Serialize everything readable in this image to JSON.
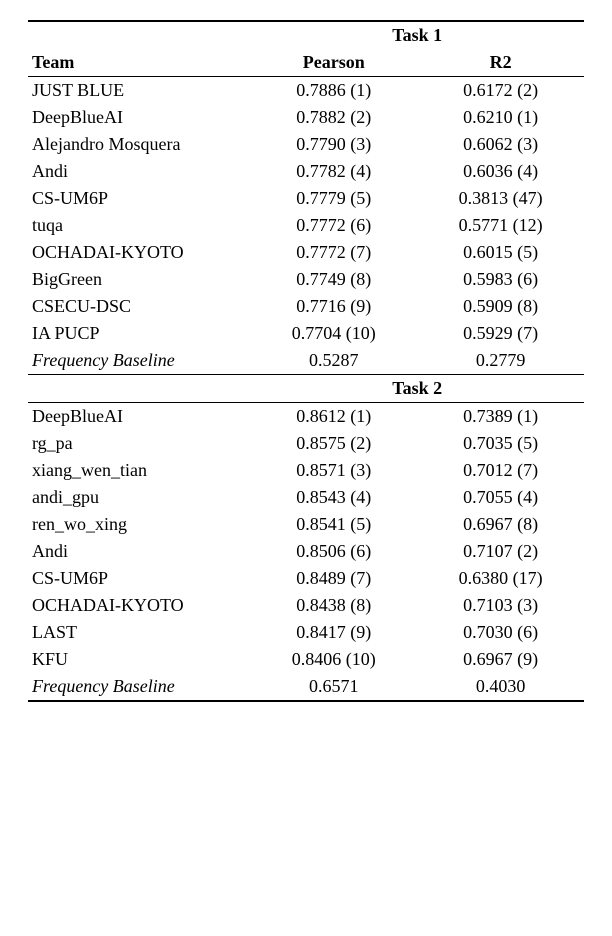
{
  "header": {
    "team": "Team",
    "task1": "Task 1",
    "task2": "Task 2",
    "pearson": "Pearson",
    "r2": "R2"
  },
  "task1": {
    "rows": [
      {
        "team": "JUST BLUE",
        "pearson": "0.7886 (1)",
        "r2": "0.6172 (2)"
      },
      {
        "team": "DeepBlueAI",
        "pearson": "0.7882 (2)",
        "r2": "0.6210 (1)"
      },
      {
        "team": "Alejandro Mosquera",
        "pearson": "0.7790 (3)",
        "r2": "0.6062 (3)"
      },
      {
        "team": "Andi",
        "pearson": "0.7782 (4)",
        "r2": "0.6036 (4)"
      },
      {
        "team": "CS-UM6P",
        "pearson": "0.7779 (5)",
        "r2": "0.3813 (47)"
      },
      {
        "team": "tuqa",
        "pearson": "0.7772 (6)",
        "r2": "0.5771 (12)"
      },
      {
        "team": "OCHADAI-KYOTO",
        "pearson": "0.7772 (7)",
        "r2": "0.6015 (5)"
      },
      {
        "team": "BigGreen",
        "pearson": "0.7749 (8)",
        "r2": "0.5983 (6)"
      },
      {
        "team": "CSECU-DSC",
        "pearson": "0.7716 (9)",
        "r2": "0.5909 (8)"
      },
      {
        "team": "IA PUCP",
        "pearson": "0.7704 (10)",
        "r2": "0.5929 (7)"
      }
    ],
    "baseline": {
      "team": "Frequency Baseline",
      "pearson": "0.5287",
      "r2": "0.2779"
    }
  },
  "task2": {
    "rows": [
      {
        "team": "DeepBlueAI",
        "pearson": "0.8612 (1)",
        "r2": "0.7389 (1)"
      },
      {
        "team": "rg_pa",
        "pearson": "0.8575 (2)",
        "r2": "0.7035 (5)"
      },
      {
        "team": "xiang_wen_tian",
        "pearson": "0.8571 (3)",
        "r2": "0.7012 (7)"
      },
      {
        "team": "andi_gpu",
        "pearson": "0.8543 (4)",
        "r2": "0.7055 (4)"
      },
      {
        "team": "ren_wo_xing",
        "pearson": "0.8541 (5)",
        "r2": "0.6967 (8)"
      },
      {
        "team": "Andi",
        "pearson": "0.8506 (6)",
        "r2": "0.7107 (2)"
      },
      {
        "team": "CS-UM6P",
        "pearson": "0.8489 (7)",
        "r2": "0.6380 (17)"
      },
      {
        "team": "OCHADAI-KYOTO",
        "pearson": "0.8438 (8)",
        "r2": "0.7103 (3)"
      },
      {
        "team": "LAST",
        "pearson": "0.8417 (9)",
        "r2": "0.7030 (6)"
      },
      {
        "team": "KFU",
        "pearson": "0.8406 (10)",
        "r2": "0.6967 (9)"
      }
    ],
    "baseline": {
      "team": "Frequency Baseline",
      "pearson": "0.6571",
      "r2": "0.4030"
    }
  }
}
